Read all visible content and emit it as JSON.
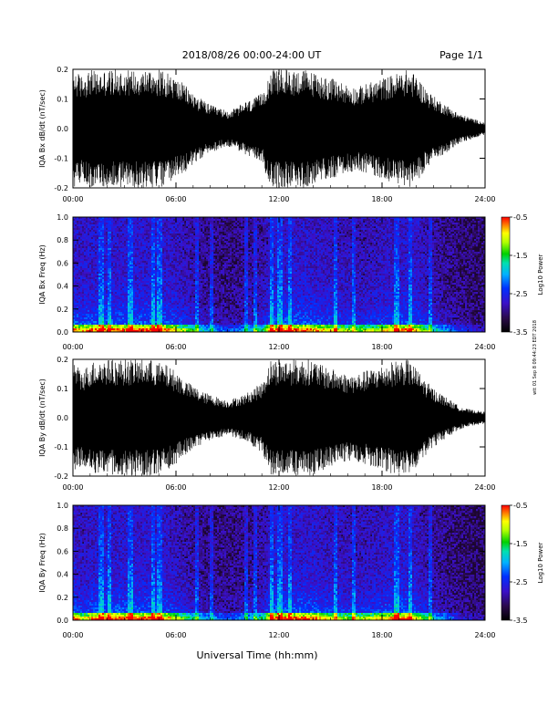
{
  "header": {
    "title": "2018/08/26  00:00-24:00 UT",
    "page": "Page 1/1"
  },
  "footer": {
    "xlabel": "Universal Time (hh:mm)"
  },
  "side_note": "wtt 01 Sep 8 09:44:23 EDT 2018",
  "colors": {
    "trace": "#000000",
    "background": "#ffffff"
  },
  "chart_data": [
    {
      "type": "line",
      "ylabel": "IQA Bx dB/dt (nT/sec)",
      "ylim": [
        -0.2,
        0.2
      ],
      "yticks": [
        "0.2",
        "0.1",
        "0.0",
        "-0.1",
        "-0.2"
      ],
      "xticks": [
        "00:00",
        "06:00",
        "12:00",
        "18:00",
        "24:00"
      ],
      "xlim_hours": [
        0,
        24
      ],
      "envelope": {
        "x_hours": [
          0,
          0.5,
          1,
          1.5,
          2,
          2.5,
          3,
          3.5,
          4,
          4.5,
          5,
          5.5,
          6,
          6.5,
          7,
          7.5,
          8,
          8.5,
          9,
          9.5,
          10,
          10.5,
          11,
          11.5,
          12,
          12.5,
          13,
          13.5,
          14,
          14.5,
          15,
          15.5,
          16,
          16.5,
          17,
          17.5,
          18,
          18.5,
          19,
          19.5,
          20,
          20.5,
          21,
          21.5,
          22,
          22.5,
          23,
          23.5,
          24
        ],
        "amplitude": [
          0.2,
          0.18,
          0.2,
          0.19,
          0.2,
          0.2,
          0.2,
          0.2,
          0.2,
          0.2,
          0.2,
          0.19,
          0.17,
          0.15,
          0.12,
          0.1,
          0.08,
          0.07,
          0.06,
          0.07,
          0.09,
          0.1,
          0.12,
          0.2,
          0.2,
          0.2,
          0.2,
          0.2,
          0.19,
          0.18,
          0.17,
          0.16,
          0.15,
          0.14,
          0.15,
          0.16,
          0.17,
          0.18,
          0.19,
          0.2,
          0.18,
          0.14,
          0.11,
          0.09,
          0.07,
          0.05,
          0.04,
          0.03,
          0.02
        ]
      }
    },
    {
      "type": "heatmap",
      "ylabel": "IQA Bx Freq (Hz)",
      "ylim": [
        0.0,
        1.0
      ],
      "yticks": [
        "1.0",
        "0.8",
        "0.6",
        "0.4",
        "0.2",
        "0.0"
      ],
      "xticks": [
        "00:00",
        "06:00",
        "12:00",
        "18:00",
        "24:00"
      ],
      "xlim_hours": [
        0,
        24
      ],
      "colorbar": {
        "label": "Log10 Power",
        "range": [
          -3.5,
          -0.5
        ],
        "ticks": [
          "-0.5",
          "-1.5",
          "-2.5",
          "-3.5"
        ]
      }
    },
    {
      "type": "line",
      "ylabel": "IQA By dB/dt (nT/sec)",
      "ylim": [
        -0.2,
        0.2
      ],
      "yticks": [
        "0.2",
        "0.1",
        "0.0",
        "-0.1",
        "-0.2"
      ],
      "xticks": [
        "00:00",
        "06:00",
        "12:00",
        "18:00",
        "24:00"
      ],
      "xlim_hours": [
        0,
        24
      ],
      "envelope": {
        "x_hours": [
          0,
          0.5,
          1,
          1.5,
          2,
          2.5,
          3,
          3.5,
          4,
          4.5,
          5,
          5.5,
          6,
          6.5,
          7,
          7.5,
          8,
          8.5,
          9,
          9.5,
          10,
          10.5,
          11,
          11.5,
          12,
          12.5,
          13,
          13.5,
          14,
          14.5,
          15,
          15.5,
          16,
          16.5,
          17,
          17.5,
          18,
          18.5,
          19,
          19.5,
          20,
          20.5,
          21,
          21.5,
          22,
          22.5,
          23,
          23.5,
          24
        ],
        "amplitude": [
          0.2,
          0.16,
          0.19,
          0.2,
          0.2,
          0.2,
          0.2,
          0.2,
          0.2,
          0.2,
          0.19,
          0.18,
          0.16,
          0.13,
          0.11,
          0.09,
          0.08,
          0.07,
          0.06,
          0.07,
          0.08,
          0.1,
          0.12,
          0.2,
          0.2,
          0.2,
          0.2,
          0.2,
          0.2,
          0.18,
          0.17,
          0.16,
          0.15,
          0.15,
          0.16,
          0.17,
          0.18,
          0.19,
          0.2,
          0.2,
          0.17,
          0.13,
          0.1,
          0.08,
          0.06,
          0.04,
          0.03,
          0.025,
          0.02
        ]
      }
    },
    {
      "type": "heatmap",
      "ylabel": "IQA By Freq (Hz)",
      "ylim": [
        0.0,
        1.0
      ],
      "yticks": [
        "1.0",
        "0.8",
        "0.6",
        "0.4",
        "0.2",
        "0.0"
      ],
      "xticks": [
        "00:00",
        "06:00",
        "12:00",
        "18:00",
        "24:00"
      ],
      "xlim_hours": [
        0,
        24
      ],
      "colorbar": {
        "label": "Log10 Power",
        "range": [
          -3.5,
          -0.5
        ],
        "ticks": [
          "-0.5",
          "-1.5",
          "-2.5",
          "-3.5"
        ]
      }
    }
  ]
}
